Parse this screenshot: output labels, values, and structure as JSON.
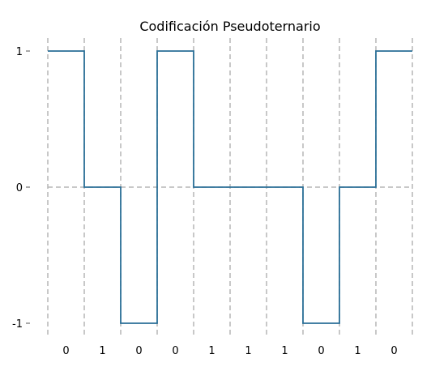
{
  "chart_data": {
    "type": "line",
    "title": "Codificación Pseudoternario",
    "xlabel": "",
    "ylabel": "",
    "bits": [
      "0",
      "1",
      "0",
      "0",
      "1",
      "1",
      "1",
      "0",
      "1",
      "0"
    ],
    "levels": [
      1,
      0,
      -1,
      1,
      0,
      0,
      0,
      -1,
      0,
      1
    ],
    "yticks": [
      1,
      0,
      -1
    ],
    "ytick_labels": [
      "1",
      "0",
      "-1"
    ],
    "ylim": [
      -1,
      1
    ],
    "step": "post",
    "grid": "dashed vertical lines at bit boundaries, dashed horizontal line at 0",
    "colors": {
      "signal": "#2a6f97",
      "grid": "#b5b5b5",
      "axis_tick": "#555555"
    }
  }
}
